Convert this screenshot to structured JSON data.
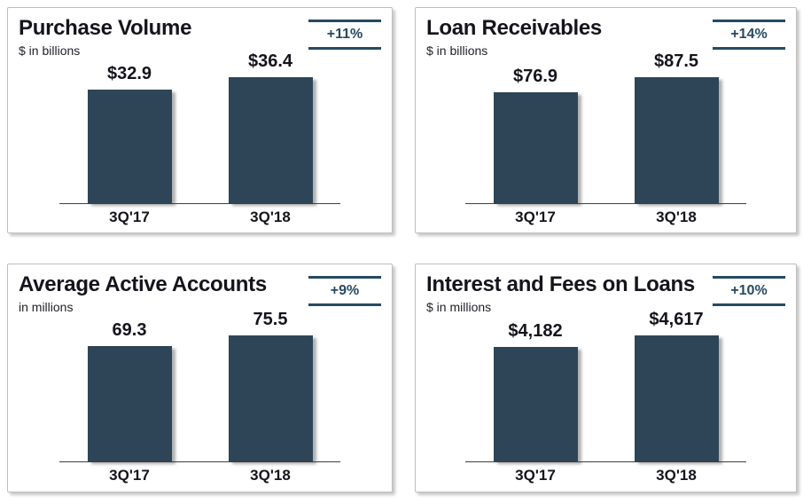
{
  "colors": {
    "bar_fill": "#2e4557",
    "badge_accent": "#264a63",
    "title_text": "#14141c",
    "axis_line": "#3f3f3f",
    "card_border": "#bfbfbf",
    "page_background": "#ffffff"
  },
  "chart_data": [
    {
      "type": "bar",
      "title": "Purchase Volume",
      "subtitle": "$ in billions",
      "change_badge": "+11%",
      "categories": [
        "3Q'17",
        "3Q'18"
      ],
      "values": [
        32.9,
        36.4
      ],
      "value_labels": [
        "$32.9",
        "$36.4"
      ],
      "baseline": 0,
      "grid": false,
      "legend": false
    },
    {
      "type": "bar",
      "title": "Loan Receivables",
      "subtitle": "$ in billions",
      "change_badge": "+14%",
      "categories": [
        "3Q'17",
        "3Q'18"
      ],
      "values": [
        76.9,
        87.5
      ],
      "value_labels": [
        "$76.9",
        "$87.5"
      ],
      "baseline": 0,
      "grid": false,
      "legend": false
    },
    {
      "type": "bar",
      "title": "Average Active Accounts",
      "subtitle": "in millions",
      "change_badge": "+9%",
      "categories": [
        "3Q'17",
        "3Q'18"
      ],
      "values": [
        69.3,
        75.5
      ],
      "value_labels": [
        "69.3",
        "75.5"
      ],
      "baseline": 0,
      "grid": false,
      "legend": false
    },
    {
      "type": "bar",
      "title": "Interest and Fees on Loans",
      "subtitle": "$ in millions",
      "change_badge": "+10%",
      "categories": [
        "3Q'17",
        "3Q'18"
      ],
      "values": [
        4182,
        4617
      ],
      "value_labels": [
        "$4,182",
        "$4,617"
      ],
      "baseline": 0,
      "grid": false,
      "legend": false
    }
  ]
}
